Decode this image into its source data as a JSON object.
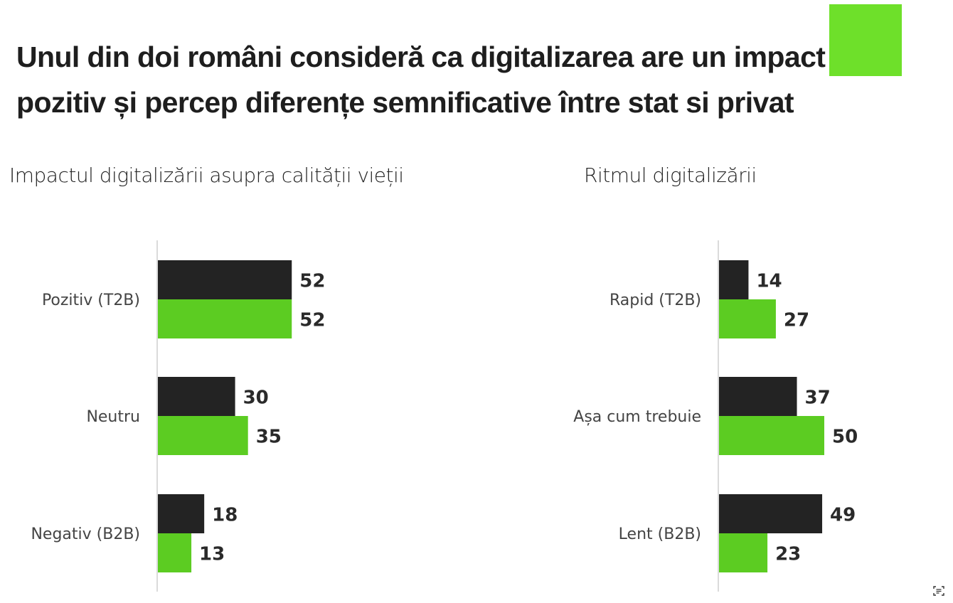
{
  "headline": {
    "line1": "Unul din doi români consideră ca digitalizarea are un impact",
    "line2": "pozitiv și percep diferențe semnificative între stat si privat"
  },
  "colors": {
    "accent": "#6ee02a",
    "series_dark": "#232323",
    "series_green": "#5ccc22",
    "axis": "#cfcfcf"
  },
  "chart_data": [
    {
      "type": "bar",
      "orientation": "horizontal",
      "title": "Impactul digitalizării asupra calității vieții",
      "categories": [
        "Pozitiv (T2B)",
        "Neutru",
        "Negativ (B2B)"
      ],
      "series": [
        {
          "name": "dark",
          "color": "#232323",
          "values": [
            52,
            30,
            18
          ]
        },
        {
          "name": "green",
          "color": "#5ccc22",
          "values": [
            52,
            35,
            13
          ]
        }
      ],
      "xlim": [
        0,
        60
      ],
      "grid": false,
      "legend": "none"
    },
    {
      "type": "bar",
      "orientation": "horizontal",
      "title": "Ritmul digitalizării",
      "categories": [
        "Rapid (T2B)",
        "Așa cum trebuie",
        "Lent (B2B)"
      ],
      "series": [
        {
          "name": "dark",
          "color": "#232323",
          "values": [
            14,
            37,
            49
          ]
        },
        {
          "name": "green",
          "color": "#5ccc22",
          "values": [
            27,
            50,
            23
          ]
        }
      ],
      "xlim": [
        0,
        60
      ],
      "grid": false,
      "legend": "none"
    }
  ],
  "icons": {
    "corner_button": "scan-text-icon"
  }
}
